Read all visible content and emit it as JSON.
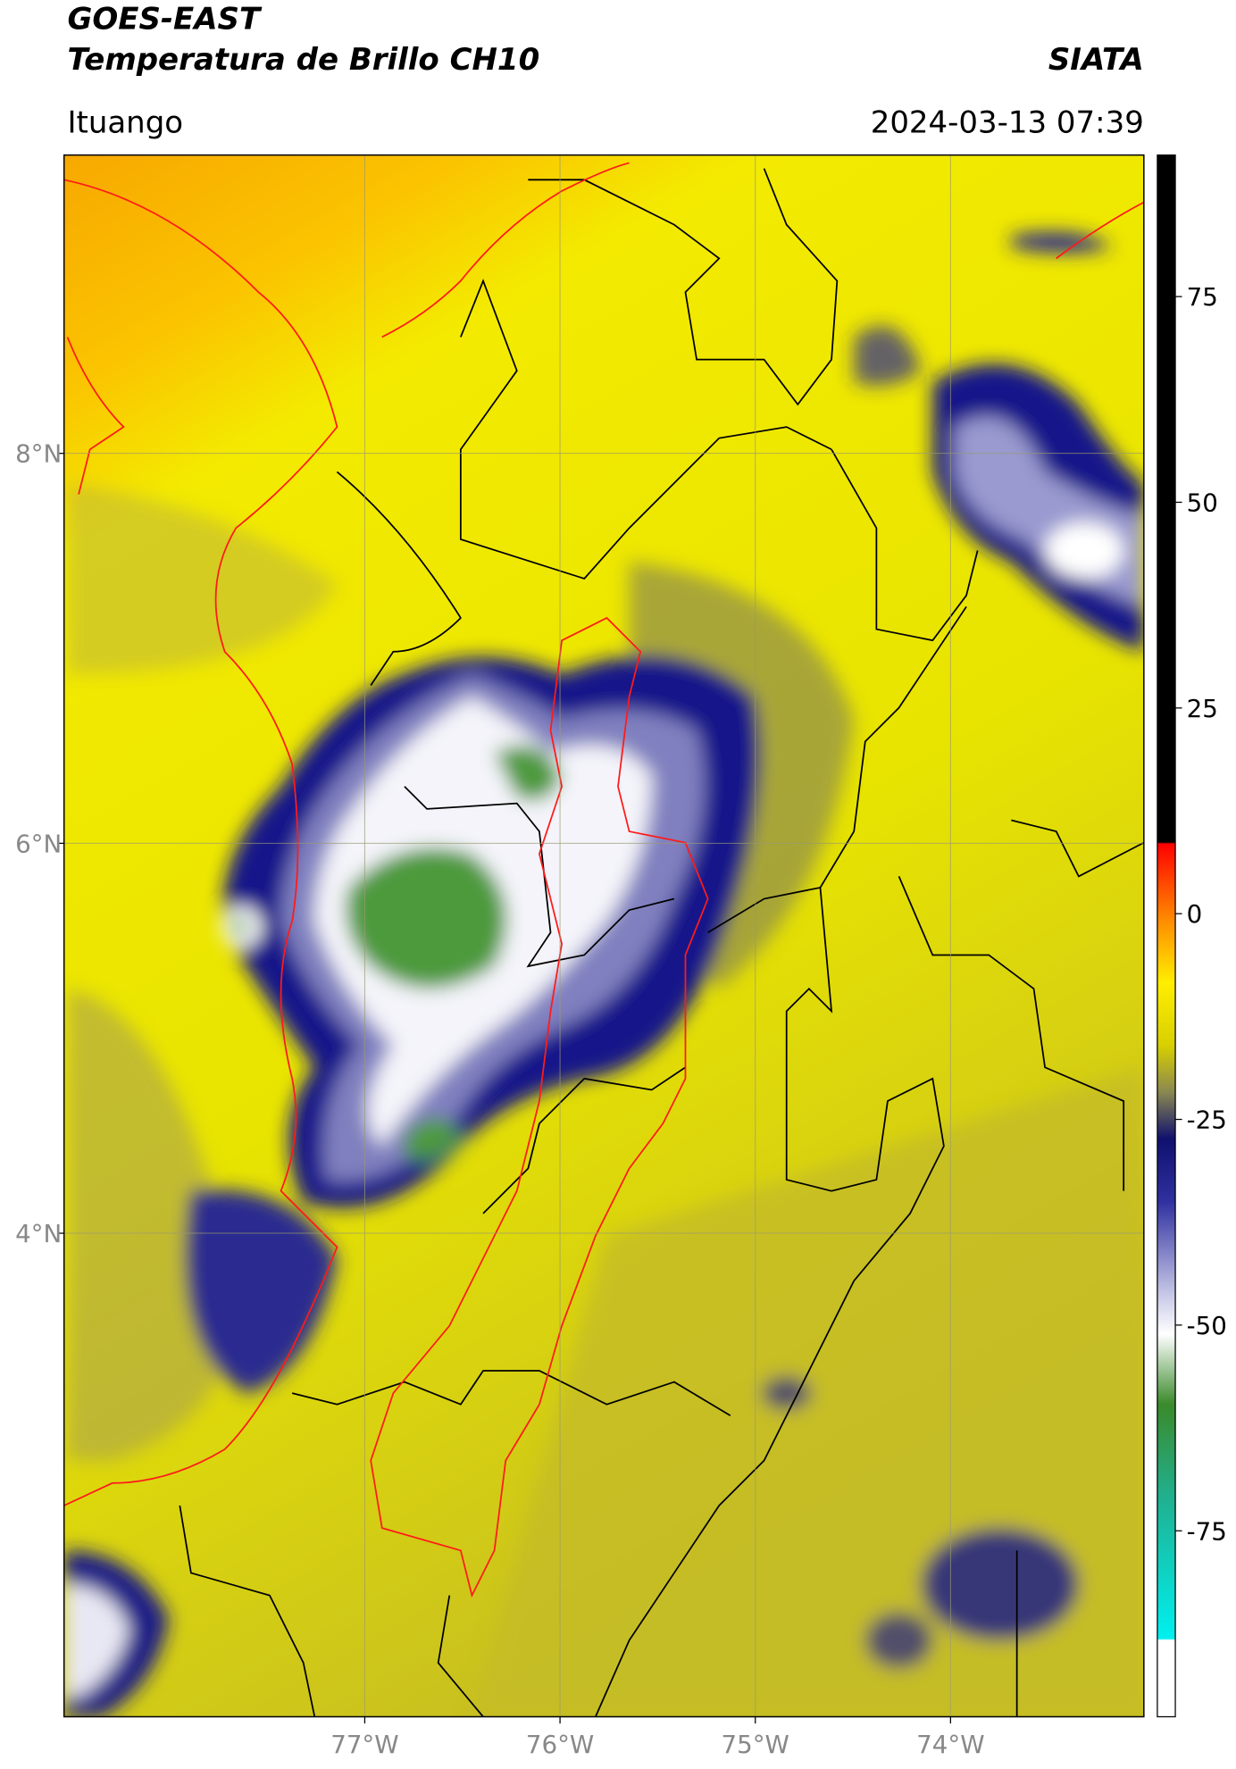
{
  "header": {
    "title": "GOES-EAST",
    "subtitle": "Temperatura de Brillo CH10",
    "brand": "SIATA",
    "location": "Ituango",
    "timestamp": "2024-03-13 07:39"
  },
  "map": {
    "xlim": [
      -78.54,
      -73.01
    ],
    "ylim": [
      1.52,
      9.53
    ],
    "xticks": [
      {
        "value": -77,
        "label": "77°W"
      },
      {
        "value": -76,
        "label": "76°W"
      },
      {
        "value": -75,
        "label": "75°W"
      },
      {
        "value": -74,
        "label": "74°W"
      }
    ],
    "yticks": [
      {
        "value": 8,
        "label": "8°N"
      },
      {
        "value": 6,
        "label": "6°N"
      },
      {
        "value": 4,
        "label": "4°N"
      }
    ],
    "grid": true
  },
  "colorbar": {
    "lim": [
      -97.6,
      92.2
    ],
    "ticks": [
      75,
      50,
      25,
      0,
      -25,
      -50,
      -75
    ]
  }
}
